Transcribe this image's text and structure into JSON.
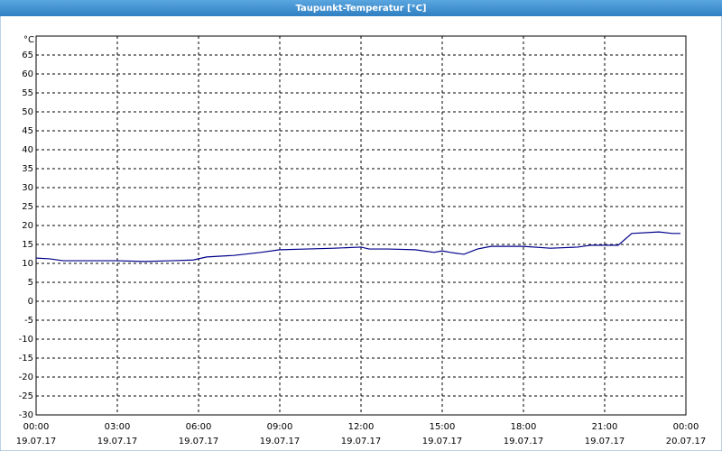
{
  "chart_data": {
    "type": "line",
    "title": "Taupunkt-Temperatur [°C]",
    "y_label": "°C",
    "x": [
      0,
      0.5,
      1,
      2,
      3,
      4,
      5,
      5.8,
      6.3,
      7.3,
      8.3,
      9,
      10,
      11,
      12,
      12.3,
      13,
      14,
      14.7,
      15,
      15.3,
      15.8,
      16.3,
      16.8,
      17.3,
      18,
      19,
      20,
      20.5,
      21,
      21.5,
      22,
      23,
      23.5,
      23.8
    ],
    "series": [
      {
        "color": "#00008b",
        "values": [
          11.4,
          11.2,
          10.7,
          10.7,
          10.7,
          10.5,
          10.7,
          10.9,
          11.7,
          12.1,
          12.9,
          13.6,
          13.8,
          14.0,
          14.3,
          13.8,
          13.8,
          13.6,
          12.9,
          13.3,
          12.9,
          12.4,
          13.8,
          14.5,
          14.5,
          14.5,
          14.0,
          14.3,
          14.8,
          14.8,
          14.8,
          17.9,
          18.3,
          17.9,
          17.9
        ]
      }
    ],
    "xlim": [
      0,
      24
    ],
    "xticks": [
      {
        "value": 0,
        "label": "00:00"
      },
      {
        "value": 3,
        "label": "03:00"
      },
      {
        "value": 6,
        "label": "06:00"
      },
      {
        "value": 9,
        "label": "09:00"
      },
      {
        "value": 12,
        "label": "12:00"
      },
      {
        "value": 15,
        "label": "15:00"
      },
      {
        "value": 18,
        "label": "18:00"
      },
      {
        "value": 21,
        "label": "21:00"
      },
      {
        "value": 24,
        "label": "00:00"
      }
    ],
    "xtick_dates": [
      "19.07.17",
      "19.07.17",
      "19.07.17",
      "19.07.17",
      "19.07.17",
      "19.07.17",
      "19.07.17",
      "19.07.17",
      "20.07.17"
    ],
    "ylim": [
      -30,
      70
    ],
    "yticks": [
      -30,
      -25,
      -20,
      -15,
      -10,
      -5,
      0,
      5,
      10,
      15,
      20,
      25,
      30,
      35,
      40,
      45,
      50,
      55,
      60,
      65
    ],
    "grid": true
  }
}
